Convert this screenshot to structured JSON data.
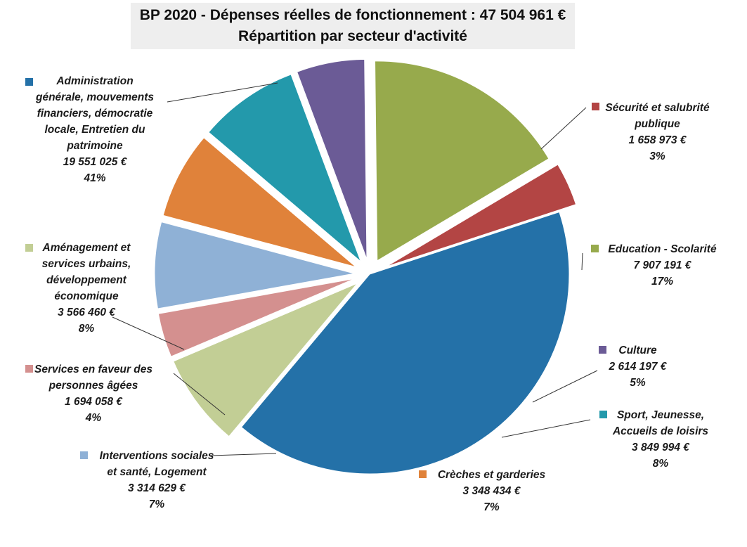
{
  "title": {
    "line1": "BP 2020 - Dépenses réelles de fonctionnement : 47 504 961 €",
    "line2": "Répartition par secteur d'activité"
  },
  "chart_data": {
    "type": "pie",
    "title": "BP 2020 - Dépenses réelles de fonctionnement : 47 504 961 € / Répartition par secteur d'activité",
    "total": 47504961,
    "slices": [
      {
        "label": "Administration générale, mouvements financiers, démocratie locale, Entretien du patrimoine",
        "value": 19551025,
        "value_label": "19 551 025 €",
        "pct_label": "41%",
        "color": "#2471A8",
        "label_lines": [
          "Administration",
          "générale, mouvements",
          "financiers, démocratie",
          "locale, Entretien du",
          "patrimoine"
        ]
      },
      {
        "label": "Sécurité et salubrité publique",
        "value": 1658973,
        "value_label": "1 658 973 €",
        "pct_label": "3%",
        "color": "#B34544",
        "label_lines": [
          "Sécurité et salubrité",
          "publique"
        ]
      },
      {
        "label": "Education - Scolarité",
        "value": 7907191,
        "value_label": "7 907 191 €",
        "pct_label": "17%",
        "color": "#97AA4C",
        "label_lines": [
          "Education - Scolarité"
        ]
      },
      {
        "label": "Culture",
        "value": 2614197,
        "value_label": "2 614 197 €",
        "pct_label": "5%",
        "color": "#6B5B96",
        "label_lines": [
          "Culture"
        ]
      },
      {
        "label": "Sport, Jeunesse, Accueils de loisirs",
        "value": 3849994,
        "value_label": "3 849 994 €",
        "pct_label": "8%",
        "color": "#2399AB",
        "label_lines": [
          "Sport, Jeunesse,",
          "Accueils de loisirs"
        ]
      },
      {
        "label": "Crèches et garderies",
        "value": 3348434,
        "value_label": "3 348 434 €",
        "pct_label": "7%",
        "color": "#E0823A",
        "label_lines": [
          "Crèches et garderies"
        ]
      },
      {
        "label": "Interventions sociales et santé, Logement",
        "value": 3314629,
        "value_label": "3 314 629 €",
        "pct_label": "7%",
        "color": "#8FB1D6",
        "label_lines": [
          "Interventions sociales",
          "et santé, Logement"
        ]
      },
      {
        "label": "Services en faveur des personnes âgées",
        "value": 1694058,
        "value_label": "1 694 058 €",
        "pct_label": "4%",
        "color": "#D4908F",
        "label_lines": [
          "Services en faveur des",
          "personnes âgées"
        ]
      },
      {
        "label": "Aménagement et services urbains, développement économique",
        "value": 3566460,
        "value_label": "3 566 460 €",
        "pct_label": "8%",
        "color": "#C2CE95",
        "label_lines": [
          "Aménagement et",
          "services urbains,",
          "développement",
          "économique"
        ]
      }
    ]
  }
}
